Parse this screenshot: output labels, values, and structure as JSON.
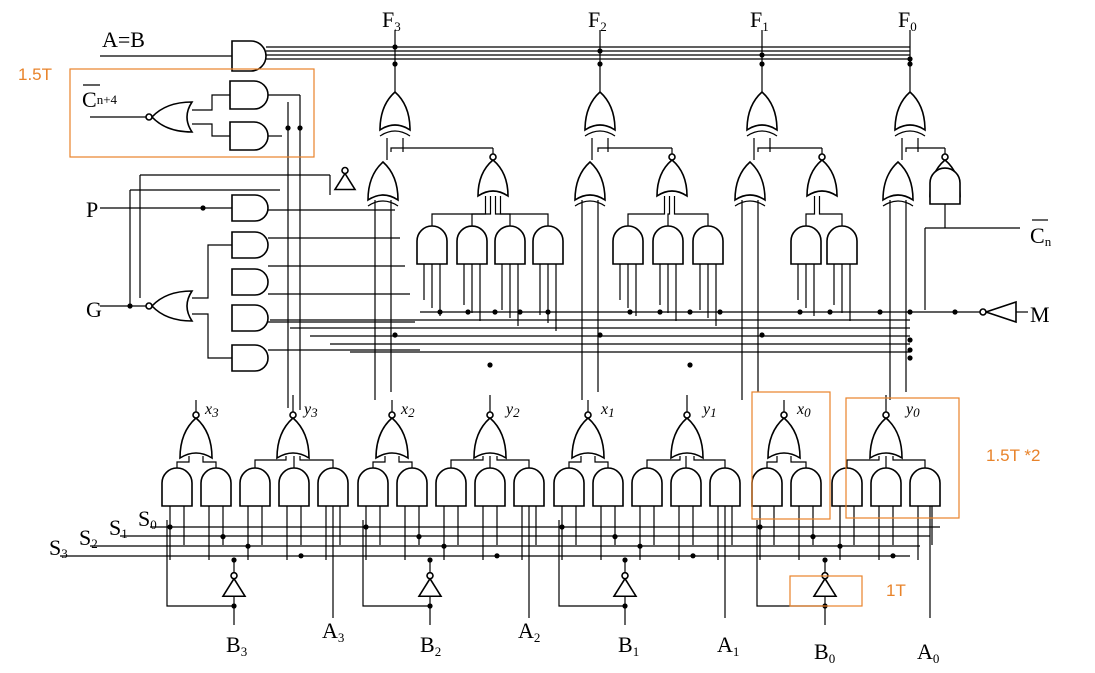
{
  "colors": {
    "annotation": "#e8832a",
    "ink": "#000000"
  },
  "outputs": [
    {
      "letter": "F",
      "sub": "3"
    },
    {
      "letter": "F",
      "sub": "2"
    },
    {
      "letter": "F",
      "sub": "1"
    },
    {
      "letter": "F",
      "sub": "0"
    }
  ],
  "left_inputs": {
    "aeqb": "A=B",
    "cn4_letter": "C",
    "cn4_sub": "n+4",
    "p": "P",
    "g": "G"
  },
  "right_inputs": {
    "cn_letter": "C",
    "cn_sub": "n",
    "m": "M"
  },
  "select": {
    "s0": {
      "letter": "S",
      "sub": "0"
    },
    "s1": {
      "letter": "S",
      "sub": "1"
    },
    "s2": {
      "letter": "S",
      "sub": "2"
    },
    "s3": {
      "letter": "S",
      "sub": "3"
    }
  },
  "bottom_inputs": [
    {
      "letter": "B",
      "sub": "3"
    },
    {
      "letter": "A",
      "sub": "3"
    },
    {
      "letter": "B",
      "sub": "2"
    },
    {
      "letter": "A",
      "sub": "2"
    },
    {
      "letter": "B",
      "sub": "1"
    },
    {
      "letter": "A",
      "sub": "1"
    },
    {
      "letter": "B",
      "sub": "0"
    },
    {
      "letter": "A",
      "sub": "0"
    }
  ],
  "xy_labels": [
    {
      "letter": "x",
      "sub": "3"
    },
    {
      "letter": "y",
      "sub": "3"
    },
    {
      "letter": "x",
      "sub": "2"
    },
    {
      "letter": "y",
      "sub": "2"
    },
    {
      "letter": "x",
      "sub": "1"
    },
    {
      "letter": "y",
      "sub": "1"
    },
    {
      "letter": "x",
      "sub": "0"
    },
    {
      "letter": "y",
      "sub": "0"
    }
  ],
  "annotations": {
    "carry_delay": "1.5T",
    "xy_delay": "1.5T *2",
    "inverter_delay": "1T"
  }
}
